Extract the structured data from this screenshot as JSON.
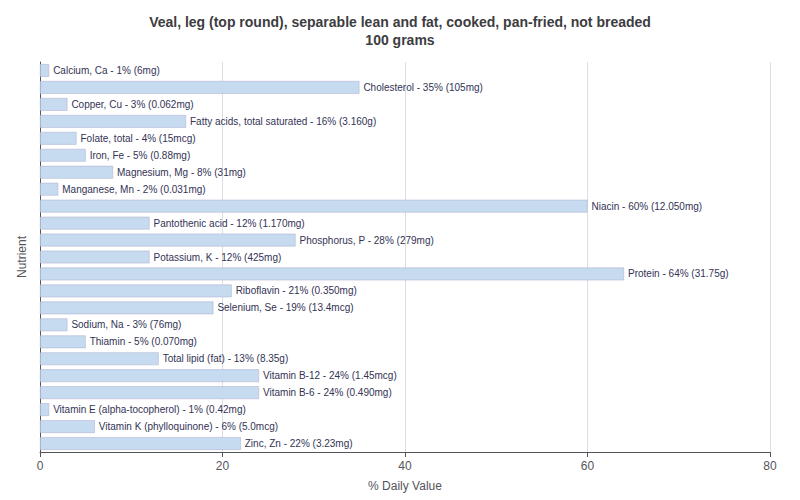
{
  "chart_data": {
    "type": "bar",
    "orientation": "horizontal",
    "title": "Veal, leg (top round), separable lean and fat, cooked, pan-fried, not breaded\n100 grams",
    "x_label": "% Daily Value",
    "y_label": "Nutrient",
    "categories": [
      "Calcium, Ca - 1% (6mg)",
      "Cholesterol - 35% (105mg)",
      "Copper, Cu - 3% (0.062mg)",
      "Fatty acids, total saturated - 16% (3.160g)",
      "Folate, total - 4% (15mcg)",
      "Iron, Fe - 5% (0.88mg)",
      "Magnesium, Mg - 8% (31mg)",
      "Manganese, Mn - 2% (0.031mg)",
      "Niacin - 60% (12.050mg)",
      "Pantothenic acid - 12% (1.170mg)",
      "Phosphorus, P - 28% (279mg)",
      "Potassium, K - 12% (425mg)",
      "Protein - 64% (31.75g)",
      "Riboflavin - 21% (0.350mg)",
      "Selenium, Se - 19% (13.4mcg)",
      "Sodium, Na - 3% (76mg)",
      "Thiamin - 5% (0.070mg)",
      "Total lipid (fat) - 13% (8.35g)",
      "Vitamin B-12 - 24% (1.45mcg)",
      "Vitamin B-6 - 24% (0.490mg)",
      "Vitamin E (alpha-tocopherol) - 1% (0.42mg)",
      "Vitamin K (phylloquinone) - 6% (5.0mcg)",
      "Zinc, Zn - 22% (3.23mg)"
    ],
    "values": [
      1,
      35,
      3,
      16,
      4,
      5,
      8,
      2,
      60,
      12,
      28,
      12,
      64,
      21,
      19,
      3,
      5,
      13,
      24,
      24,
      1,
      6,
      22
    ],
    "color": "#c6dbef",
    "xlim": [
      0,
      80
    ],
    "xticks": [
      0,
      20,
      40,
      60,
      80
    ],
    "grid": true,
    "tick_labels": "x"
  }
}
